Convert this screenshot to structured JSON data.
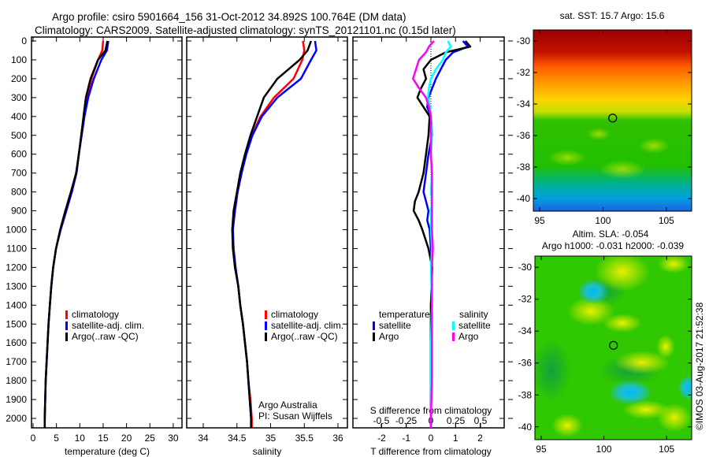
{
  "title_line1": "Argo profile: csiro 5901664_156 31-Oct-2012 34.892S 100.764E (DM data)",
  "title_line2": "Climatology: CARS2009. Satellite-adjusted climatology: synTS_20121101.nc (0.15d later)",
  "credit": "Argo Australia",
  "pi": "PI: Susan Wijffels",
  "timestamp": "©IMOS 03-Aug-2017 21:52:38",
  "colors": {
    "climatology": "#ff0000",
    "satellite": "#0000ff",
    "argo": "#000000",
    "sal_satellite": "#00ffff",
    "sal_argo": "#ff00ff"
  },
  "chart_data": [
    {
      "type": "line",
      "name": "temperature",
      "xlabel": "temperature (deg C)",
      "xlim": [
        -1,
        31
      ],
      "ylim": [
        2050,
        0
      ],
      "xticks": [
        0,
        5,
        10,
        15,
        20,
        25,
        30
      ],
      "yticks": [
        0,
        100,
        200,
        300,
        400,
        500,
        600,
        700,
        800,
        900,
        1000,
        1100,
        1200,
        1300,
        1400,
        1500,
        1600,
        1700,
        1800,
        1900,
        2000
      ],
      "legend": [
        "climatology",
        "satellite-adj. clim.",
        "Argo(..raw -QC)"
      ],
      "depth": [
        0,
        50,
        100,
        200,
        300,
        400,
        500,
        600,
        700,
        800,
        900,
        1000,
        1100,
        1200,
        1300,
        1400,
        1500,
        1600,
        1700,
        1800,
        1900,
        2000,
        2050
      ],
      "series": [
        {
          "name": "climatology",
          "values": [
            15.0,
            14.8,
            13.9,
            12.5,
            11.6,
            10.9,
            10.3,
            9.8,
            9.3,
            8.3,
            7.1,
            5.9,
            4.9,
            4.3,
            3.9,
            3.6,
            3.3,
            3.1,
            2.9,
            2.7,
            2.6,
            2.5,
            2.5
          ]
        },
        {
          "name": "satellite-adj. clim.",
          "values": [
            16.1,
            15.8,
            14.6,
            13.0,
            11.8,
            11.0,
            10.4,
            9.8,
            9.3,
            8.3,
            7.1,
            5.9,
            4.9,
            4.3,
            3.9,
            3.6,
            3.3,
            3.1,
            2.9,
            2.7,
            2.6,
            2.5,
            2.5
          ]
        },
        {
          "name": "Argo(..raw -QC)",
          "values": [
            15.9,
            15.5,
            13.9,
            12.3,
            11.3,
            10.8,
            10.3,
            9.8,
            9.2,
            8.1,
            6.9,
            5.8,
            4.9,
            4.3,
            3.9,
            3.6,
            3.3,
            3.1,
            2.9,
            2.7,
            2.6,
            2.5,
            2.5
          ]
        }
      ]
    },
    {
      "type": "line",
      "name": "salinity",
      "xlabel": "salinity",
      "xlim": [
        33.77,
        36.15
      ],
      "ylim": [
        2050,
        0
      ],
      "xticks": [
        34,
        34.5,
        35,
        35.5,
        36
      ],
      "legend": [
        "climatology",
        "satellite-adj. clim.",
        "Argo(..raw -QC)"
      ],
      "depth": [
        0,
        50,
        100,
        200,
        300,
        400,
        500,
        600,
        700,
        800,
        900,
        1000,
        1100,
        1200,
        1300,
        1400,
        1500,
        1600,
        1700,
        1800,
        1900,
        2000,
        2050
      ],
      "series": [
        {
          "name": "climatology",
          "values": [
            35.48,
            35.5,
            35.47,
            35.34,
            35.05,
            34.85,
            34.72,
            34.63,
            34.57,
            34.51,
            34.47,
            34.44,
            34.45,
            34.48,
            34.52,
            34.55,
            34.59,
            34.62,
            34.65,
            34.67,
            34.7,
            34.72,
            34.72
          ]
        },
        {
          "name": "satellite-adj. clim.",
          "values": [
            35.66,
            35.68,
            35.6,
            35.45,
            35.1,
            34.87,
            34.73,
            34.64,
            34.57,
            34.51,
            34.47,
            34.44,
            34.45,
            34.48,
            34.52,
            34.55,
            34.59,
            34.62,
            34.65,
            34.67,
            34.69,
            34.71,
            34.71
          ]
        },
        {
          "name": "Argo(..raw -QC)",
          "values": [
            35.6,
            35.55,
            35.43,
            35.1,
            34.9,
            34.8,
            34.7,
            34.62,
            34.55,
            34.5,
            34.45,
            34.43,
            34.44,
            34.47,
            34.52,
            34.55,
            34.59,
            34.62,
            34.65,
            34.67,
            34.69,
            34.71,
            34.71
          ]
        }
      ]
    },
    {
      "type": "line",
      "name": "differences",
      "xlabel": "T difference from climatology",
      "x2label": "S difference from climatology",
      "xlim": [
        -2.9,
        2.9
      ],
      "xticks": [
        -2,
        -1,
        0,
        1,
        2
      ],
      "x2ticks": [
        -0.5,
        -0.25,
        0,
        0.25,
        0.5
      ],
      "x2labels": [
        "-0.5",
        "-0.25",
        "0",
        "0.25",
        "0.5"
      ],
      "ylim": [
        2050,
        0
      ],
      "legend_temperature": "temperature",
      "legend_salinity": "salinity",
      "legend_items": [
        "satellite",
        "Argo"
      ],
      "depth": [
        0,
        30,
        60,
        100,
        150,
        200,
        250,
        300,
        350,
        400,
        500,
        600,
        700,
        800,
        850,
        900,
        950,
        1000,
        1100,
        1200,
        1400,
        1600,
        1800,
        2000,
        2050
      ],
      "series": [
        {
          "name": "T satellite",
          "unit": "T",
          "values": [
            1.3,
            1.5,
            0.9,
            0.6,
            0.4,
            0.2,
            0.05,
            -0.1,
            -0.15,
            0.0,
            0.05,
            -0.1,
            -0.2,
            -0.3,
            -0.2,
            -0.1,
            -0.15,
            -0.05,
            0.0,
            0.05,
            0.0,
            0.0,
            0.0,
            0.0,
            0.0
          ]
        },
        {
          "name": "T Argo",
          "unit": "T",
          "values": [
            1.4,
            1.6,
            0.6,
            0.0,
            -0.3,
            -0.2,
            -0.4,
            -0.55,
            -0.3,
            -0.05,
            -0.1,
            -0.2,
            -0.3,
            -0.5,
            -0.65,
            -0.7,
            -0.5,
            -0.35,
            -0.1,
            0.05,
            0.0,
            0.0,
            0.0,
            0.0,
            0.0
          ]
        },
        {
          "name": "S satellite",
          "unit": "S",
          "values": [
            0.17,
            0.2,
            0.15,
            0.12,
            0.05,
            0.0,
            -0.02,
            -0.03,
            -0.01,
            0.0,
            0.01,
            0.0,
            0.01,
            0.0,
            0.01,
            0.0,
            0.0,
            0.0,
            0.01,
            0.0,
            0.01,
            0.0,
            0.0,
            0.0,
            0.0
          ]
        },
        {
          "name": "S Argo",
          "unit": "S",
          "values": [
            0.03,
            -0.02,
            -0.05,
            -0.12,
            -0.15,
            -0.18,
            -0.12,
            -0.05,
            -0.02,
            0.0,
            0.0,
            0.0,
            0.01,
            0.01,
            0.01,
            0.01,
            0.01,
            0.01,
            0.02,
            0.01,
            0.01,
            0.01,
            0.01,
            0.0,
            0.0
          ]
        }
      ]
    },
    {
      "type": "heatmap",
      "name": "sst-map",
      "title": "sat. SST: 15.7 Argo: 15.6",
      "xticks": [
        95,
        100,
        105
      ],
      "yticks": [
        -30,
        -32,
        -34,
        -36,
        -38,
        -40
      ],
      "xlim": [
        94.5,
        107
      ],
      "ylim": [
        -40.8,
        -29.3
      ],
      "marker": [
        100.764,
        -34.892
      ]
    },
    {
      "type": "heatmap",
      "name": "sla-map",
      "title_line1": "Altim. SLA: -0.054",
      "title_line2": "Argo h1000: -0.031 h2000: -0.039",
      "xticks": [
        95,
        100,
        105
      ],
      "yticks": [
        -30,
        -32,
        -34,
        -36,
        -38,
        -40
      ],
      "xlim": [
        94.5,
        107
      ],
      "ylim": [
        -40.8,
        -29.3
      ],
      "marker": [
        100.764,
        -34.892
      ]
    }
  ]
}
